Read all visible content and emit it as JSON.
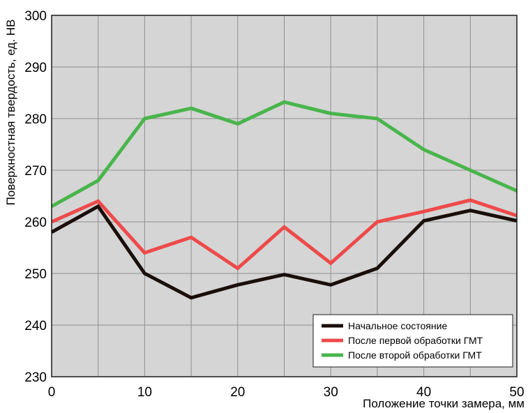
{
  "chart_data": {
    "type": "line",
    "title": "",
    "xlabel": "Положение точки замера, мм",
    "ylabel": "Поверхностная твердость, ед. HB",
    "xlim": [
      0,
      50
    ],
    "ylim": [
      230,
      300
    ],
    "xticks": [
      0,
      10,
      20,
      30,
      40,
      50
    ],
    "yticks": [
      230,
      240,
      250,
      260,
      270,
      280,
      290,
      300
    ],
    "grid": true,
    "legend_position": "bottom-right",
    "x": [
      0,
      5,
      10,
      15,
      20,
      25,
      30,
      35,
      40,
      45,
      50
    ],
    "series": [
      {
        "name": "Начальное состояние",
        "color": "#1a0e0a",
        "values": [
          258,
          263,
          250,
          245.3,
          247.8,
          249.8,
          247.8,
          251,
          260.2,
          262.2,
          260.2
        ]
      },
      {
        "name": "После первой обработки ГМТ",
        "color": "#ee4a4a",
        "values": [
          260,
          264,
          254,
          257,
          251,
          259,
          252,
          260,
          262,
          264.2,
          261.2
        ]
      },
      {
        "name": "После второй обработки ГМТ",
        "color": "#49b54b",
        "values": [
          263,
          268,
          280,
          282,
          279,
          283.2,
          281,
          280,
          274,
          270,
          266
        ]
      }
    ]
  }
}
